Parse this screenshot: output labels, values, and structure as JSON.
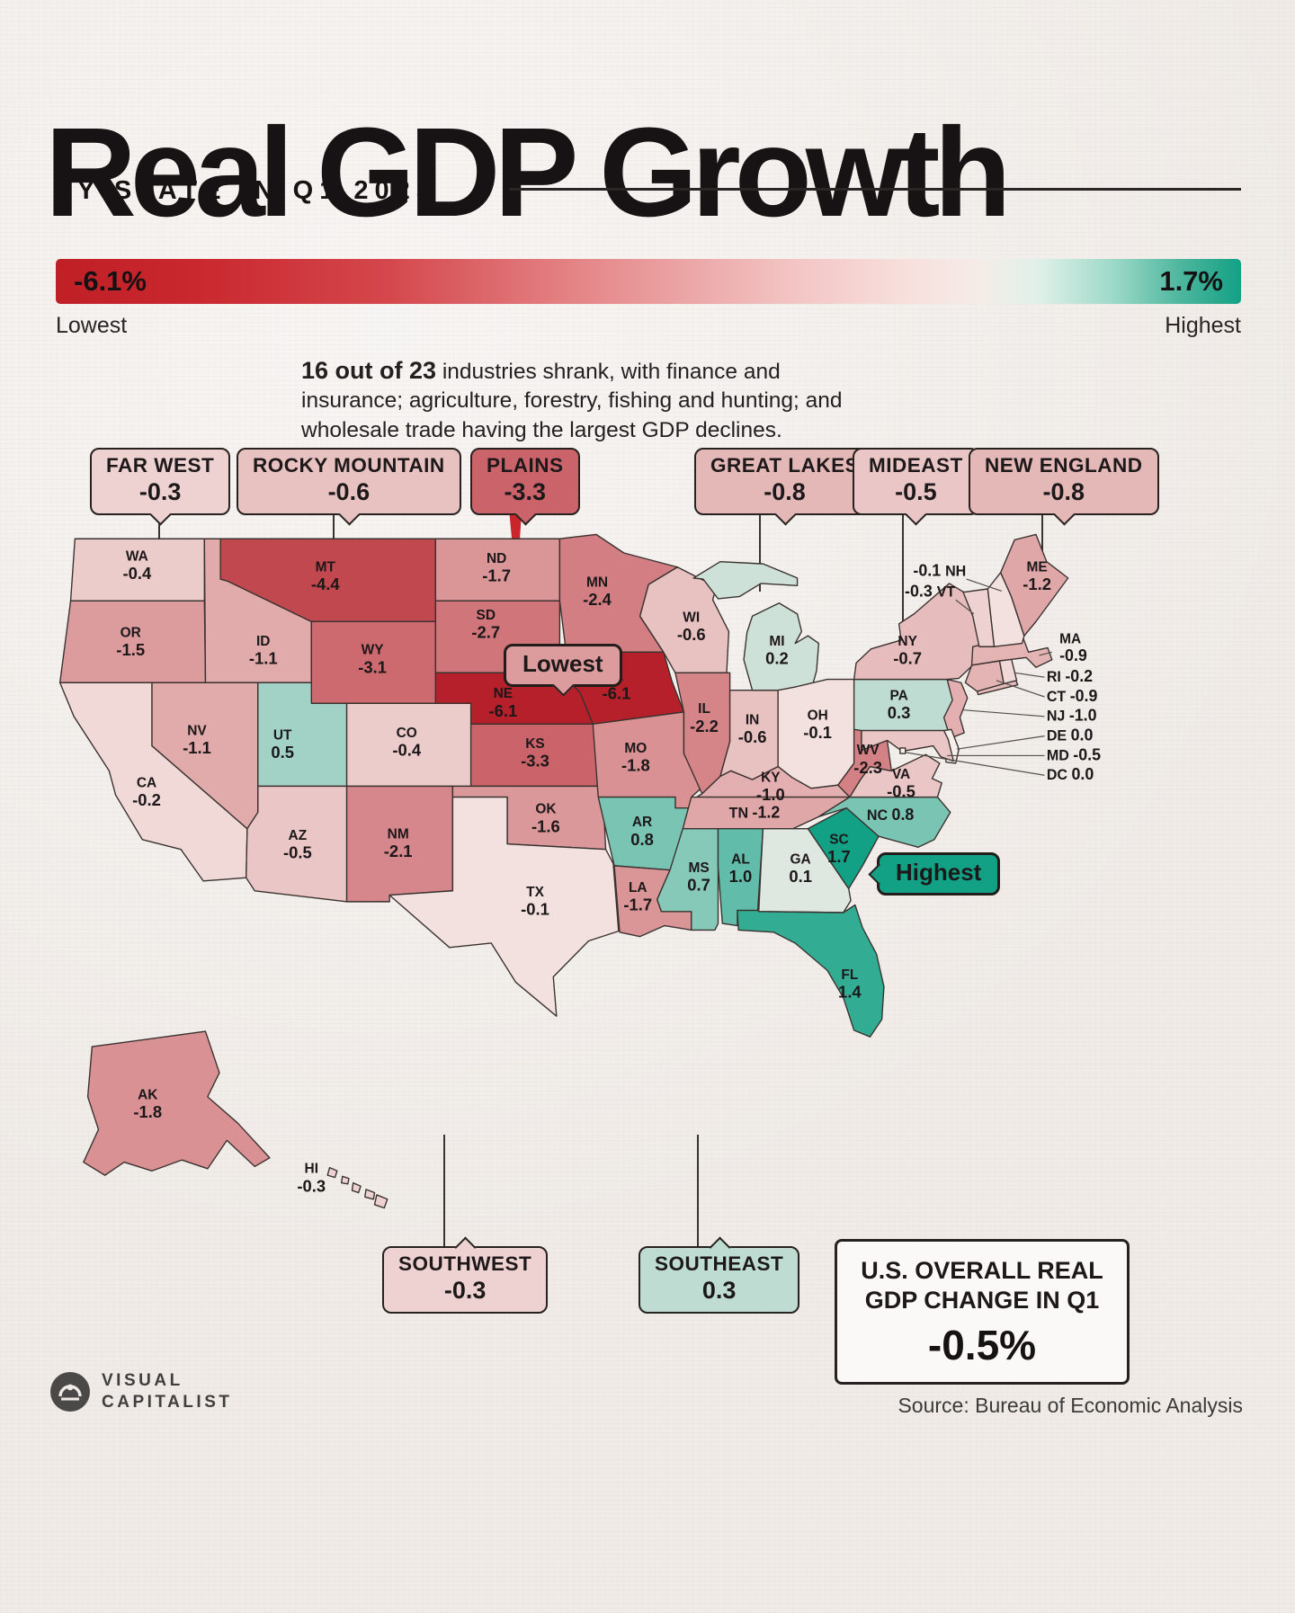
{
  "header": {
    "title": "Real GDP Growth",
    "subtitle": "BY STATE IN Q1 2025"
  },
  "legend": {
    "min_value": "-6.1%",
    "max_value": "1.7%",
    "min_label": "Lowest",
    "max_label": "Highest"
  },
  "intro": {
    "lead": "16 out of 23",
    "text": " industries shrank, with finance and insurance; agriculture, forestry, fishing and hunting; and wholesale trade having the largest GDP declines."
  },
  "chart_data": {
    "type": "choropleth",
    "title": "Real GDP Growth by State in Q1 2025",
    "unit": "percent change in real GDP, Q1 2025",
    "scale": {
      "min": -6.1,
      "max": 1.7,
      "min_label": "Lowest",
      "max_label": "Highest",
      "negative_color": "#b5202a",
      "positive_color": "#12a185",
      "neutral_color": "#f7efec"
    },
    "states": [
      {
        "code": "WA",
        "value": -0.4
      },
      {
        "code": "OR",
        "value": -1.5
      },
      {
        "code": "CA",
        "value": -0.2
      },
      {
        "code": "NV",
        "value": -1.1
      },
      {
        "code": "ID",
        "value": -1.1
      },
      {
        "code": "MT",
        "value": -4.4
      },
      {
        "code": "WY",
        "value": -3.1
      },
      {
        "code": "UT",
        "value": 0.5
      },
      {
        "code": "CO",
        "value": -0.4
      },
      {
        "code": "AZ",
        "value": -0.5
      },
      {
        "code": "NM",
        "value": -2.1
      },
      {
        "code": "ND",
        "value": -1.7
      },
      {
        "code": "SD",
        "value": -2.7
      },
      {
        "code": "NE",
        "value": -6.1
      },
      {
        "code": "KS",
        "value": -3.3
      },
      {
        "code": "OK",
        "value": -1.6
      },
      {
        "code": "TX",
        "value": -0.1
      },
      {
        "code": "MN",
        "value": -2.4
      },
      {
        "code": "IA",
        "value": -6.1
      },
      {
        "code": "MO",
        "value": -1.8
      },
      {
        "code": "AR",
        "value": 0.8
      },
      {
        "code": "LA",
        "value": -1.7
      },
      {
        "code": "WI",
        "value": -0.6
      },
      {
        "code": "IL",
        "value": -2.2
      },
      {
        "code": "IN",
        "value": -0.6
      },
      {
        "code": "MI",
        "value": 0.2
      },
      {
        "code": "OH",
        "value": -0.1
      },
      {
        "code": "KY",
        "value": -1.0
      },
      {
        "code": "TN",
        "value": -1.2
      },
      {
        "code": "MS",
        "value": 0.7
      },
      {
        "code": "AL",
        "value": 1.0
      },
      {
        "code": "GA",
        "value": 0.1
      },
      {
        "code": "FL",
        "value": 1.4
      },
      {
        "code": "SC",
        "value": 1.7
      },
      {
        "code": "NC",
        "value": 0.8
      },
      {
        "code": "VA",
        "value": -0.5
      },
      {
        "code": "WV",
        "value": -2.3
      },
      {
        "code": "PA",
        "value": 0.3
      },
      {
        "code": "NY",
        "value": -0.7
      },
      {
        "code": "NJ",
        "value": -1.0
      },
      {
        "code": "CT",
        "value": -0.9
      },
      {
        "code": "RI",
        "value": -0.2
      },
      {
        "code": "MA",
        "value": -0.9
      },
      {
        "code": "VT",
        "value": -0.3
      },
      {
        "code": "NH",
        "value": -0.1
      },
      {
        "code": "ME",
        "value": -1.2
      },
      {
        "code": "DE",
        "value": 0.0
      },
      {
        "code": "MD",
        "value": -0.5
      },
      {
        "code": "DC",
        "value": 0.0
      },
      {
        "code": "AK",
        "value": -1.8
      },
      {
        "code": "HI",
        "value": -0.3
      }
    ],
    "regions": [
      {
        "name": "FAR WEST",
        "value": -0.3,
        "display": "-0.3"
      },
      {
        "name": "ROCKY MOUNTAIN",
        "value": -0.6,
        "display": "-0.6"
      },
      {
        "name": "PLAINS",
        "value": -3.3,
        "display": "-3.3"
      },
      {
        "name": "GREAT LAKES",
        "value": -0.8,
        "display": "-0.8"
      },
      {
        "name": "MIDEAST",
        "value": -0.5,
        "display": "-0.5"
      },
      {
        "name": "NEW ENGLAND",
        "value": -0.8,
        "display": "-0.8"
      },
      {
        "name": "SOUTHWEST",
        "value": -0.3,
        "display": "-0.3"
      },
      {
        "name": "SOUTHEAST",
        "value": 0.3,
        "display": "0.3"
      }
    ],
    "annotations": {
      "lowest": "Lowest",
      "highest": "Highest"
    },
    "overall": {
      "label": "U.S. OVERALL REAL GDP CHANGE IN Q1",
      "value": "-0.5%"
    }
  },
  "footer": {
    "brand_line1": "VISUAL",
    "brand_line2": "CAPITALIST",
    "source": "Source: Bureau of Economic Analysis"
  }
}
